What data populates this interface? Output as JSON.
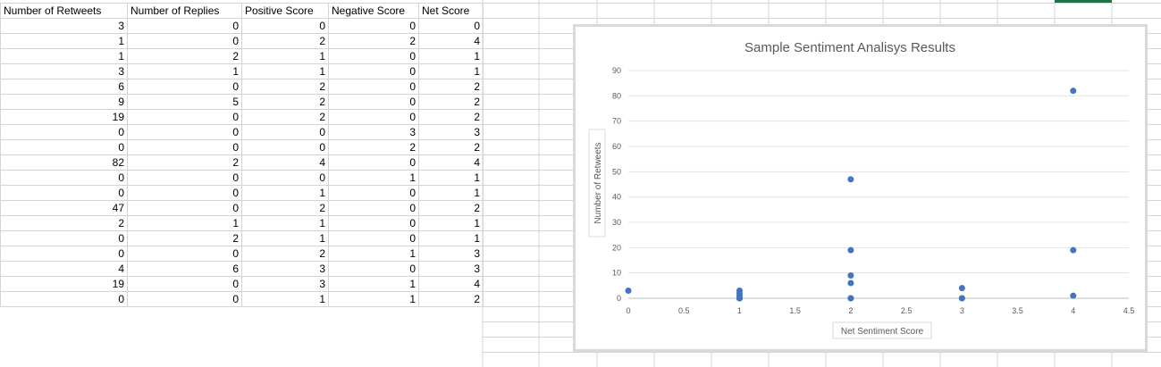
{
  "sheet": {
    "headers": [
      "Number of Retweets",
      "Number of Replies",
      "Positive Score",
      "Negative Score",
      "Net Score"
    ],
    "rows": [
      [
        3,
        0,
        0,
        0,
        0
      ],
      [
        1,
        0,
        2,
        2,
        4
      ],
      [
        1,
        2,
        1,
        0,
        1
      ],
      [
        3,
        1,
        1,
        0,
        1
      ],
      [
        6,
        0,
        2,
        0,
        2
      ],
      [
        9,
        5,
        2,
        0,
        2
      ],
      [
        19,
        0,
        2,
        0,
        2
      ],
      [
        0,
        0,
        0,
        3,
        3
      ],
      [
        0,
        0,
        0,
        2,
        2
      ],
      [
        82,
        2,
        4,
        0,
        4
      ],
      [
        0,
        0,
        0,
        1,
        1
      ],
      [
        0,
        0,
        1,
        0,
        1
      ],
      [
        47,
        0,
        2,
        0,
        2
      ],
      [
        2,
        1,
        1,
        0,
        1
      ],
      [
        0,
        2,
        1,
        0,
        1
      ],
      [
        0,
        0,
        2,
        1,
        3
      ],
      [
        4,
        6,
        3,
        0,
        3
      ],
      [
        19,
        0,
        3,
        1,
        4
      ],
      [
        0,
        0,
        1,
        1,
        2
      ]
    ],
    "accent_color": "#217346"
  },
  "chart_data": {
    "type": "scatter",
    "title": "Sample Sentiment Analisys Results",
    "xlabel": "Net Sentiment Score",
    "ylabel": "Number of Retweets",
    "xlim": [
      0,
      4.5
    ],
    "ylim": [
      0,
      90
    ],
    "x_ticks": [
      "0",
      "0.5",
      "1",
      "1.5",
      "2",
      "2.5",
      "3",
      "3.5",
      "4",
      "4.5"
    ],
    "y_ticks": [
      "0",
      "10",
      "20",
      "30",
      "40",
      "50",
      "60",
      "70",
      "80",
      "90"
    ],
    "grid": true,
    "legend": "none",
    "marker_color": "#4472c4",
    "points": [
      {
        "x": 0,
        "y": 3
      },
      {
        "x": 4,
        "y": 1
      },
      {
        "x": 1,
        "y": 1
      },
      {
        "x": 1,
        "y": 3
      },
      {
        "x": 2,
        "y": 6
      },
      {
        "x": 2,
        "y": 9
      },
      {
        "x": 2,
        "y": 19
      },
      {
        "x": 3,
        "y": 0
      },
      {
        "x": 2,
        "y": 0
      },
      {
        "x": 4,
        "y": 82
      },
      {
        "x": 1,
        "y": 0
      },
      {
        "x": 1,
        "y": 0
      },
      {
        "x": 2,
        "y": 47
      },
      {
        "x": 1,
        "y": 2
      },
      {
        "x": 1,
        "y": 0
      },
      {
        "x": 3,
        "y": 0
      },
      {
        "x": 3,
        "y": 4
      },
      {
        "x": 4,
        "y": 19
      },
      {
        "x": 2,
        "y": 0
      }
    ]
  }
}
